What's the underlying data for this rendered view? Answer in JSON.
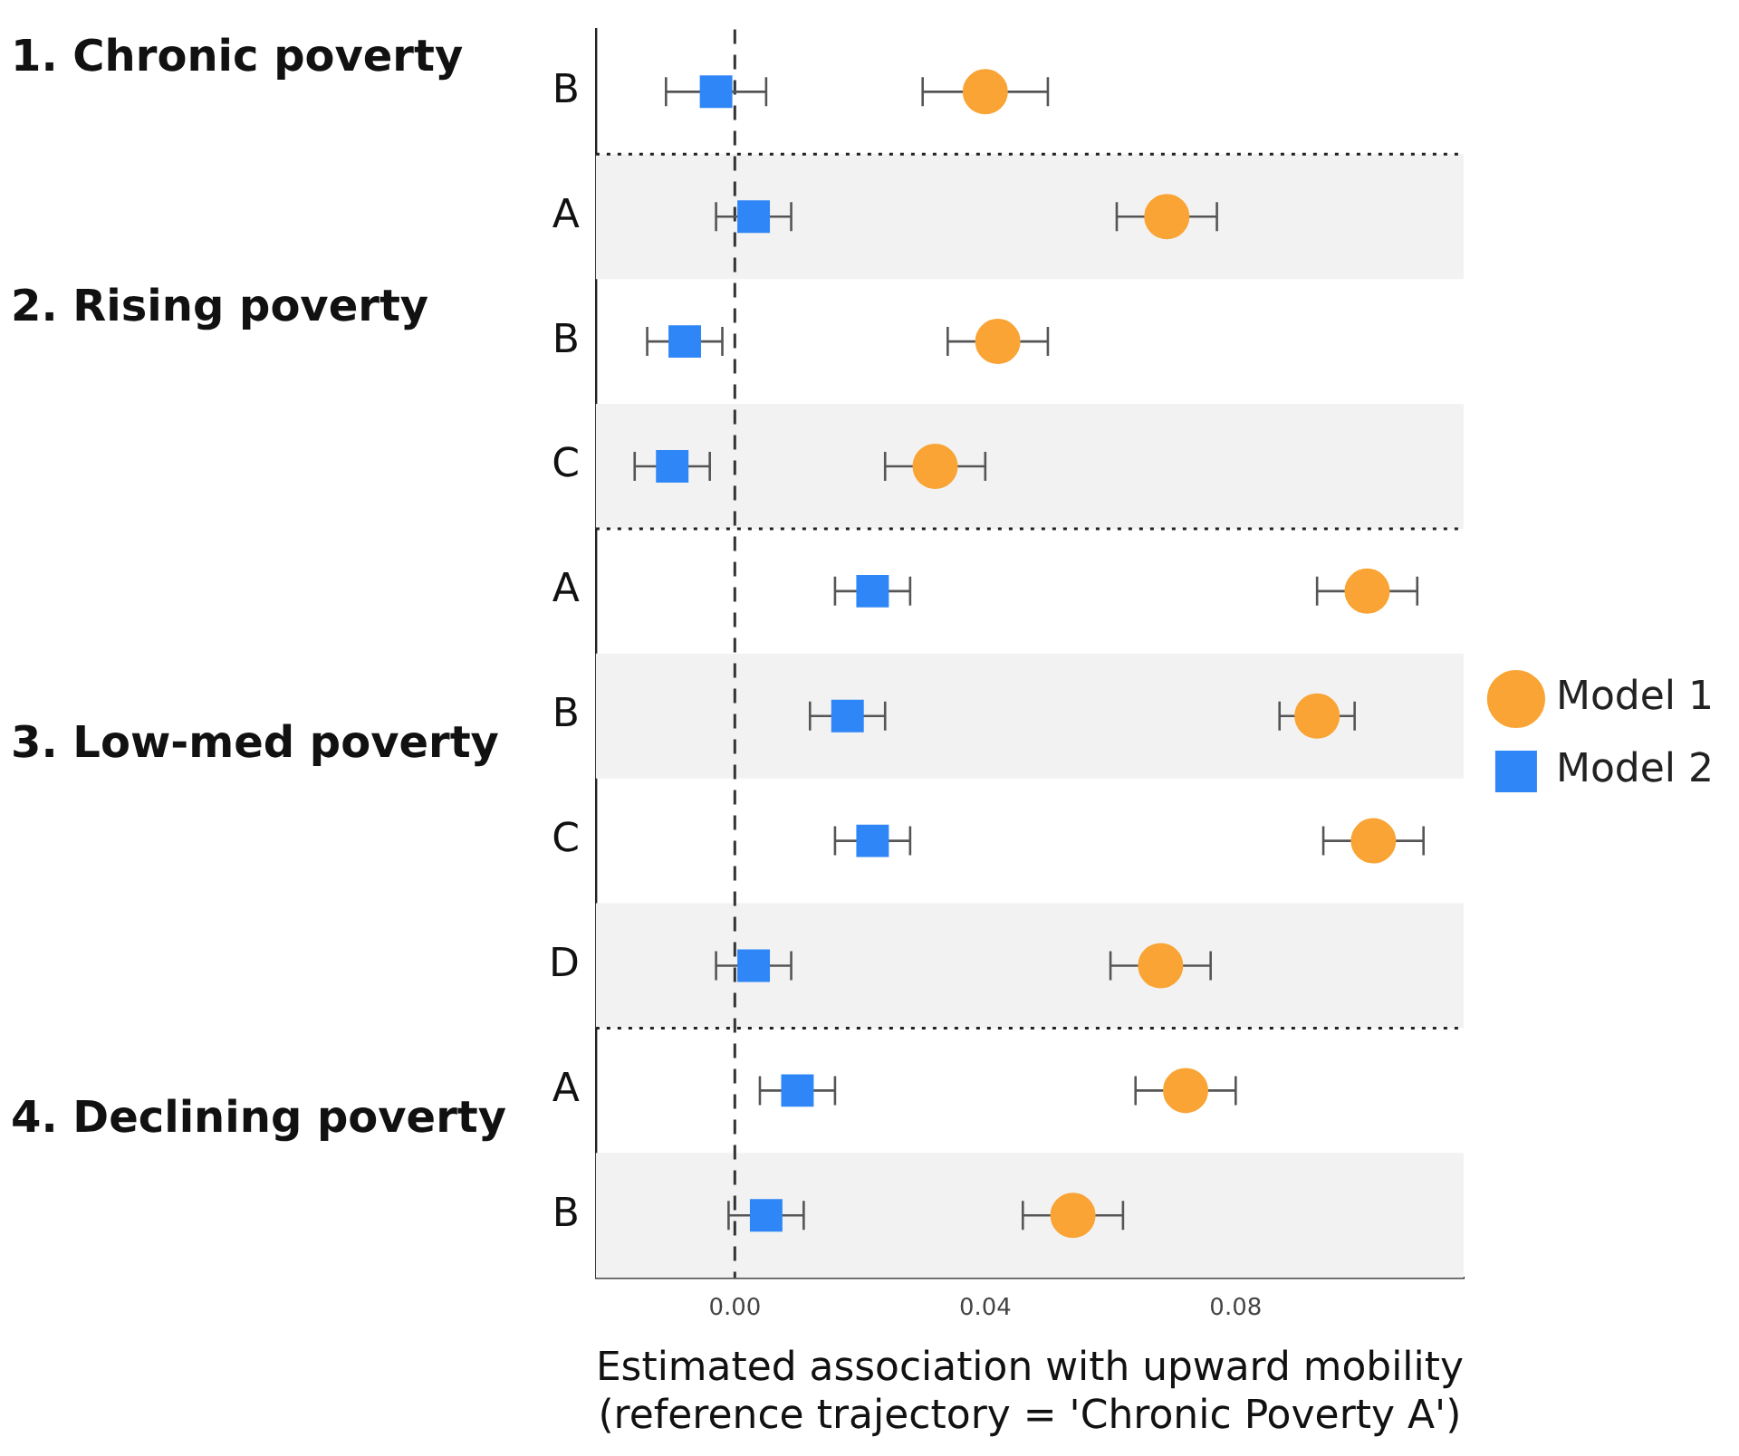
{
  "chart_data": {
    "type": "scatter",
    "orientation": "horizontal",
    "categories": [
      "B",
      "A",
      "B",
      "C",
      "A",
      "B",
      "C",
      "D",
      "A",
      "B"
    ],
    "xlabel": "Estimated association with upward mobility\n(reference trajectory = 'Chronic Poverty A')",
    "xlim": [
      -0.0222,
      0.1164
    ],
    "xticks": [
      {
        "value": 0,
        "label": "0.00"
      },
      {
        "value": 0.04,
        "label": "0.04"
      },
      {
        "value": 0.08,
        "label": "0.08"
      }
    ],
    "grid": false,
    "legend": "right",
    "ref_lines": [
      {
        "axis": "x",
        "value": 0,
        "line_style": "dashed",
        "color": "#333333"
      }
    ],
    "annotations": [
      "1. Chronic poverty",
      "2. Rising poverty",
      "3. Low-med poverty",
      "4. Declining poverty"
    ],
    "series": [
      {
        "name": "Model 1",
        "color": "#f9a435",
        "marker": "circle",
        "values": [
          0.04,
          0.069,
          0.042,
          0.032,
          0.101,
          0.093,
          0.102,
          0.068,
          0.072,
          0.054
        ],
        "errors": [
          [
            0.03,
            0.05
          ],
          [
            0.061,
            0.077
          ],
          [
            0.034,
            0.05
          ],
          [
            0.024,
            0.04
          ],
          [
            0.093,
            0.109
          ],
          [
            0.087,
            0.099
          ],
          [
            0.094,
            0.11
          ],
          [
            0.06,
            0.076
          ],
          [
            0.064,
            0.08
          ],
          [
            0.046,
            0.062
          ]
        ]
      },
      {
        "name": "Model 2",
        "color": "#2f86f6",
        "marker": "square",
        "values": [
          -0.003,
          0.003,
          -0.008,
          -0.01,
          0.022,
          0.018,
          0.022,
          0.003,
          0.01,
          0.005
        ],
        "errors": [
          [
            -0.011,
            0.005
          ],
          [
            -0.003,
            0.009
          ],
          [
            -0.014,
            -0.002
          ],
          [
            -0.016,
            -0.004
          ],
          [
            0.016,
            0.028
          ],
          [
            0.012,
            0.024
          ],
          [
            0.016,
            0.028
          ],
          [
            -0.003,
            0.009
          ],
          [
            0.004,
            0.016
          ],
          [
            -0.001,
            0.011
          ]
        ]
      }
    ]
  }
}
